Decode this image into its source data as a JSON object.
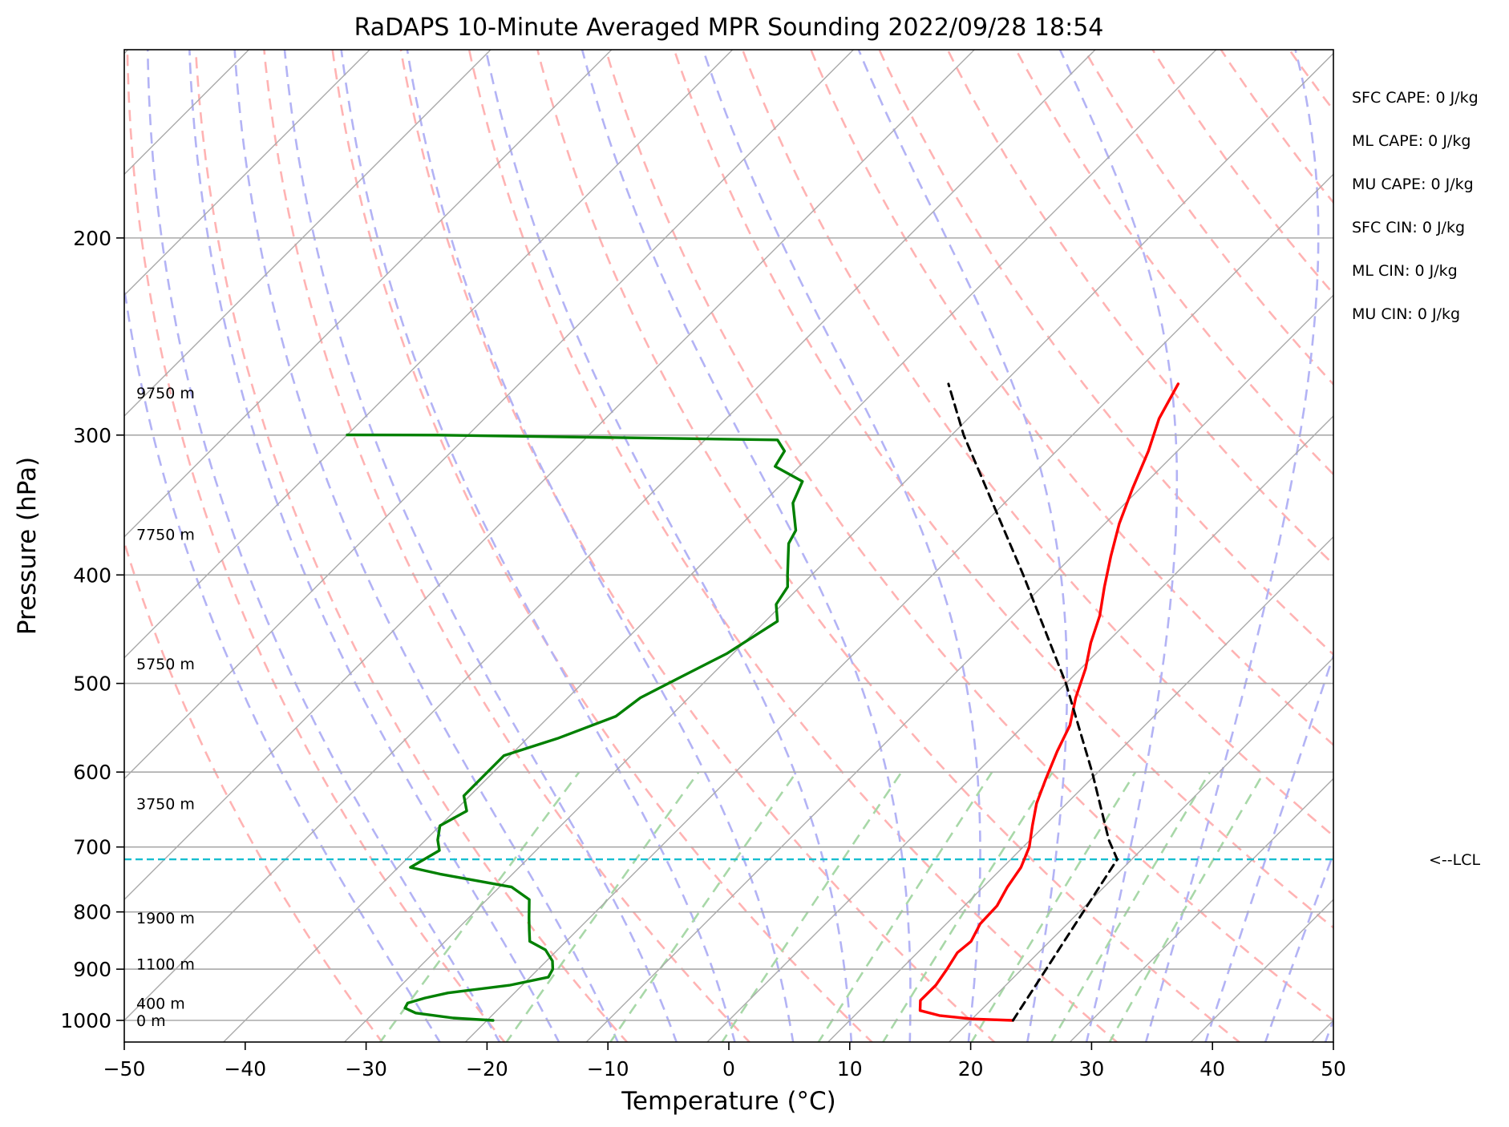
{
  "chart_data": {
    "type": "line",
    "title": "RaDAPS 10-Minute Averaged MPR Sounding 2022/09/28 18:54",
    "xlabel": "Temperature (°C)",
    "ylabel": "Pressure (hPa)",
    "xlim": [
      -50,
      50
    ],
    "ylim": [
      1050,
      100
    ],
    "y_scale": "log",
    "skew": true,
    "grid": true,
    "x_ticks": [
      "−50",
      "−40",
      "−30",
      "−20",
      "−10",
      "0",
      "10",
      "20",
      "30",
      "40",
      "50"
    ],
    "y_ticks": [
      "100",
      "200",
      "300",
      "400",
      "500",
      "600",
      "700",
      "800",
      "900",
      "1000"
    ],
    "series": [
      {
        "name": "",
        "role": "temperature",
        "color": "#ff0000",
        "points": [
          [
            1000,
            23.5
          ],
          [
            997,
            20
          ],
          [
            990,
            17
          ],
          [
            980,
            15
          ],
          [
            960,
            14.2
          ],
          [
            930,
            14.2
          ],
          [
            900,
            13.8
          ],
          [
            870,
            13.3
          ],
          [
            850,
            13.5
          ],
          [
            820,
            12.8
          ],
          [
            790,
            12.7
          ],
          [
            760,
            12
          ],
          [
            730,
            11.5
          ],
          [
            700,
            10.5
          ],
          [
            670,
            9.0
          ],
          [
            640,
            7.5
          ],
          [
            610,
            6.3
          ],
          [
            575,
            4.9
          ],
          [
            545,
            3.8
          ],
          [
            515,
            2.0
          ],
          [
            485,
            0.4
          ],
          [
            460,
            -1.3
          ],
          [
            435,
            -2.8
          ],
          [
            410,
            -4.8
          ],
          [
            385,
            -6.8
          ],
          [
            360,
            -8.8
          ],
          [
            335,
            -10.6
          ],
          [
            310,
            -12.4
          ],
          [
            290,
            -14.2
          ],
          [
            270,
            -15.5
          ]
        ]
      },
      {
        "name": "",
        "role": "dewpoint",
        "color": "#008000",
        "points": [
          [
            1000,
            -19.5
          ],
          [
            995,
            -23
          ],
          [
            985,
            -26.5
          ],
          [
            975,
            -27.8
          ],
          [
            965,
            -28
          ],
          [
            955,
            -27
          ],
          [
            945,
            -25.5
          ],
          [
            930,
            -21
          ],
          [
            915,
            -18.5
          ],
          [
            900,
            -18.8
          ],
          [
            885,
            -19.5
          ],
          [
            865,
            -21
          ],
          [
            850,
            -23
          ],
          [
            830,
            -24
          ],
          [
            810,
            -25
          ],
          [
            780,
            -26.5
          ],
          [
            760,
            -29
          ],
          [
            740,
            -36
          ],
          [
            730,
            -39
          ],
          [
            705,
            -38
          ],
          [
            690,
            -39
          ],
          [
            670,
            -40
          ],
          [
            650,
            -39
          ],
          [
            630,
            -40.5
          ],
          [
            605,
            -40.5
          ],
          [
            580,
            -40.5
          ],
          [
            560,
            -37.5
          ],
          [
            535,
            -34.5
          ],
          [
            515,
            -34
          ],
          [
            495,
            -32.5
          ],
          [
            470,
            -30.5
          ],
          [
            440,
            -29
          ],
          [
            425,
            -30.5
          ],
          [
            410,
            -31
          ],
          [
            400,
            -32
          ],
          [
            375,
            -34.5
          ],
          [
            365,
            -35
          ],
          [
            345,
            -37.5
          ],
          [
            330,
            -38.5
          ],
          [
            320,
            -42
          ],
          [
            310,
            -42.5
          ],
          [
            303,
            -44
          ],
          [
            300,
            -72.5
          ],
          [
            299.9,
            -80
          ]
        ]
      },
      {
        "name": "",
        "role": "parcel",
        "color": "#000000",
        "points": [
          [
            1000,
            23.5
          ],
          [
            718,
            18.8
          ],
          [
            690,
            16.5
          ],
          [
            600,
            9.5
          ],
          [
            500,
            0
          ],
          [
            400,
            -12.5
          ],
          [
            300,
            -29
          ],
          [
            270,
            -34.5
          ]
        ]
      }
    ],
    "lcl_pressure": 718,
    "lcl_label": "<--LCL",
    "height_labels": [
      {
        "pressure": 1000,
        "text": "0 m"
      },
      {
        "pressure": 965,
        "text": "400 m"
      },
      {
        "pressure": 890,
        "text": "1100 m"
      },
      {
        "pressure": 810,
        "text": "1900 m"
      },
      {
        "pressure": 640,
        "text": "3750 m"
      },
      {
        "pressure": 480,
        "text": "5750 m"
      },
      {
        "pressure": 368,
        "text": "7750 m"
      },
      {
        "pressure": 275,
        "text": "9750 m"
      }
    ],
    "indices": [
      "SFC CAPE: 0 J/kg",
      "ML CAPE: 0 J/kg",
      "MU CAPE: 0 J/kg",
      "SFC CIN: 0 J/kg",
      "ML CIN: 0 J/kg",
      "MU CIN: 0 J/kg"
    ],
    "background_lines": {
      "isotherm_color": "#aaaaaa",
      "dry_adiabat_color": "#ffb3b3",
      "moist_adiabat_color": "#b3b3f5",
      "mixing_ratio_color": "#a8d8a8",
      "lcl_color": "#17becf"
    }
  }
}
